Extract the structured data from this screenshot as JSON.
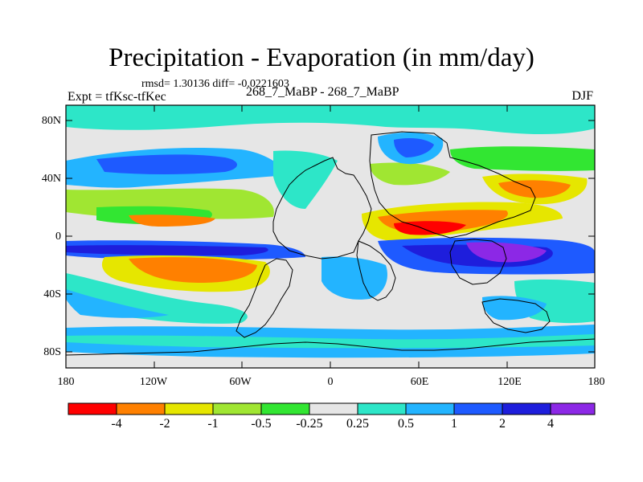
{
  "title": "Precipitation - Evaporation (in mm/day)",
  "stats_text": "rmsd= 1.30136 diff= -0.0221603",
  "left_label": "Expt = tfKsc-tfKec",
  "center_label": "268_7_MaBP - 268_7_MaBP",
  "right_label": "DJF",
  "x_ticks": [
    "180",
    "120W",
    "60W",
    "0",
    "60E",
    "120E",
    "180"
  ],
  "y_ticks": [
    "80N",
    "40N",
    "0",
    "40S",
    "80S"
  ],
  "colorbar": {
    "labels": [
      "-4",
      "-2",
      "-1",
      "-0.5",
      "-0.25",
      "0.25",
      "0.5",
      "1",
      "2",
      "4"
    ],
    "colors": [
      "#ff0000",
      "#ff8000",
      "#e6e600",
      "#a0e632",
      "#32e632",
      "#e6e6e6",
      "#2de6c8",
      "#23b4ff",
      "#1e5aff",
      "#1e1edc",
      "#8c28e6"
    ]
  },
  "palette": {
    "neutral": "#e6e6e6",
    "cyan": "#2de6c8",
    "lightblue": "#23b4ff",
    "blue": "#1e5aff",
    "darkblue": "#1e1edc",
    "purple": "#8c28e6",
    "green": "#32e632",
    "lightgreen": "#a0e632",
    "yellow": "#e6e600",
    "orange": "#ff8000",
    "red": "#ff0000"
  }
}
